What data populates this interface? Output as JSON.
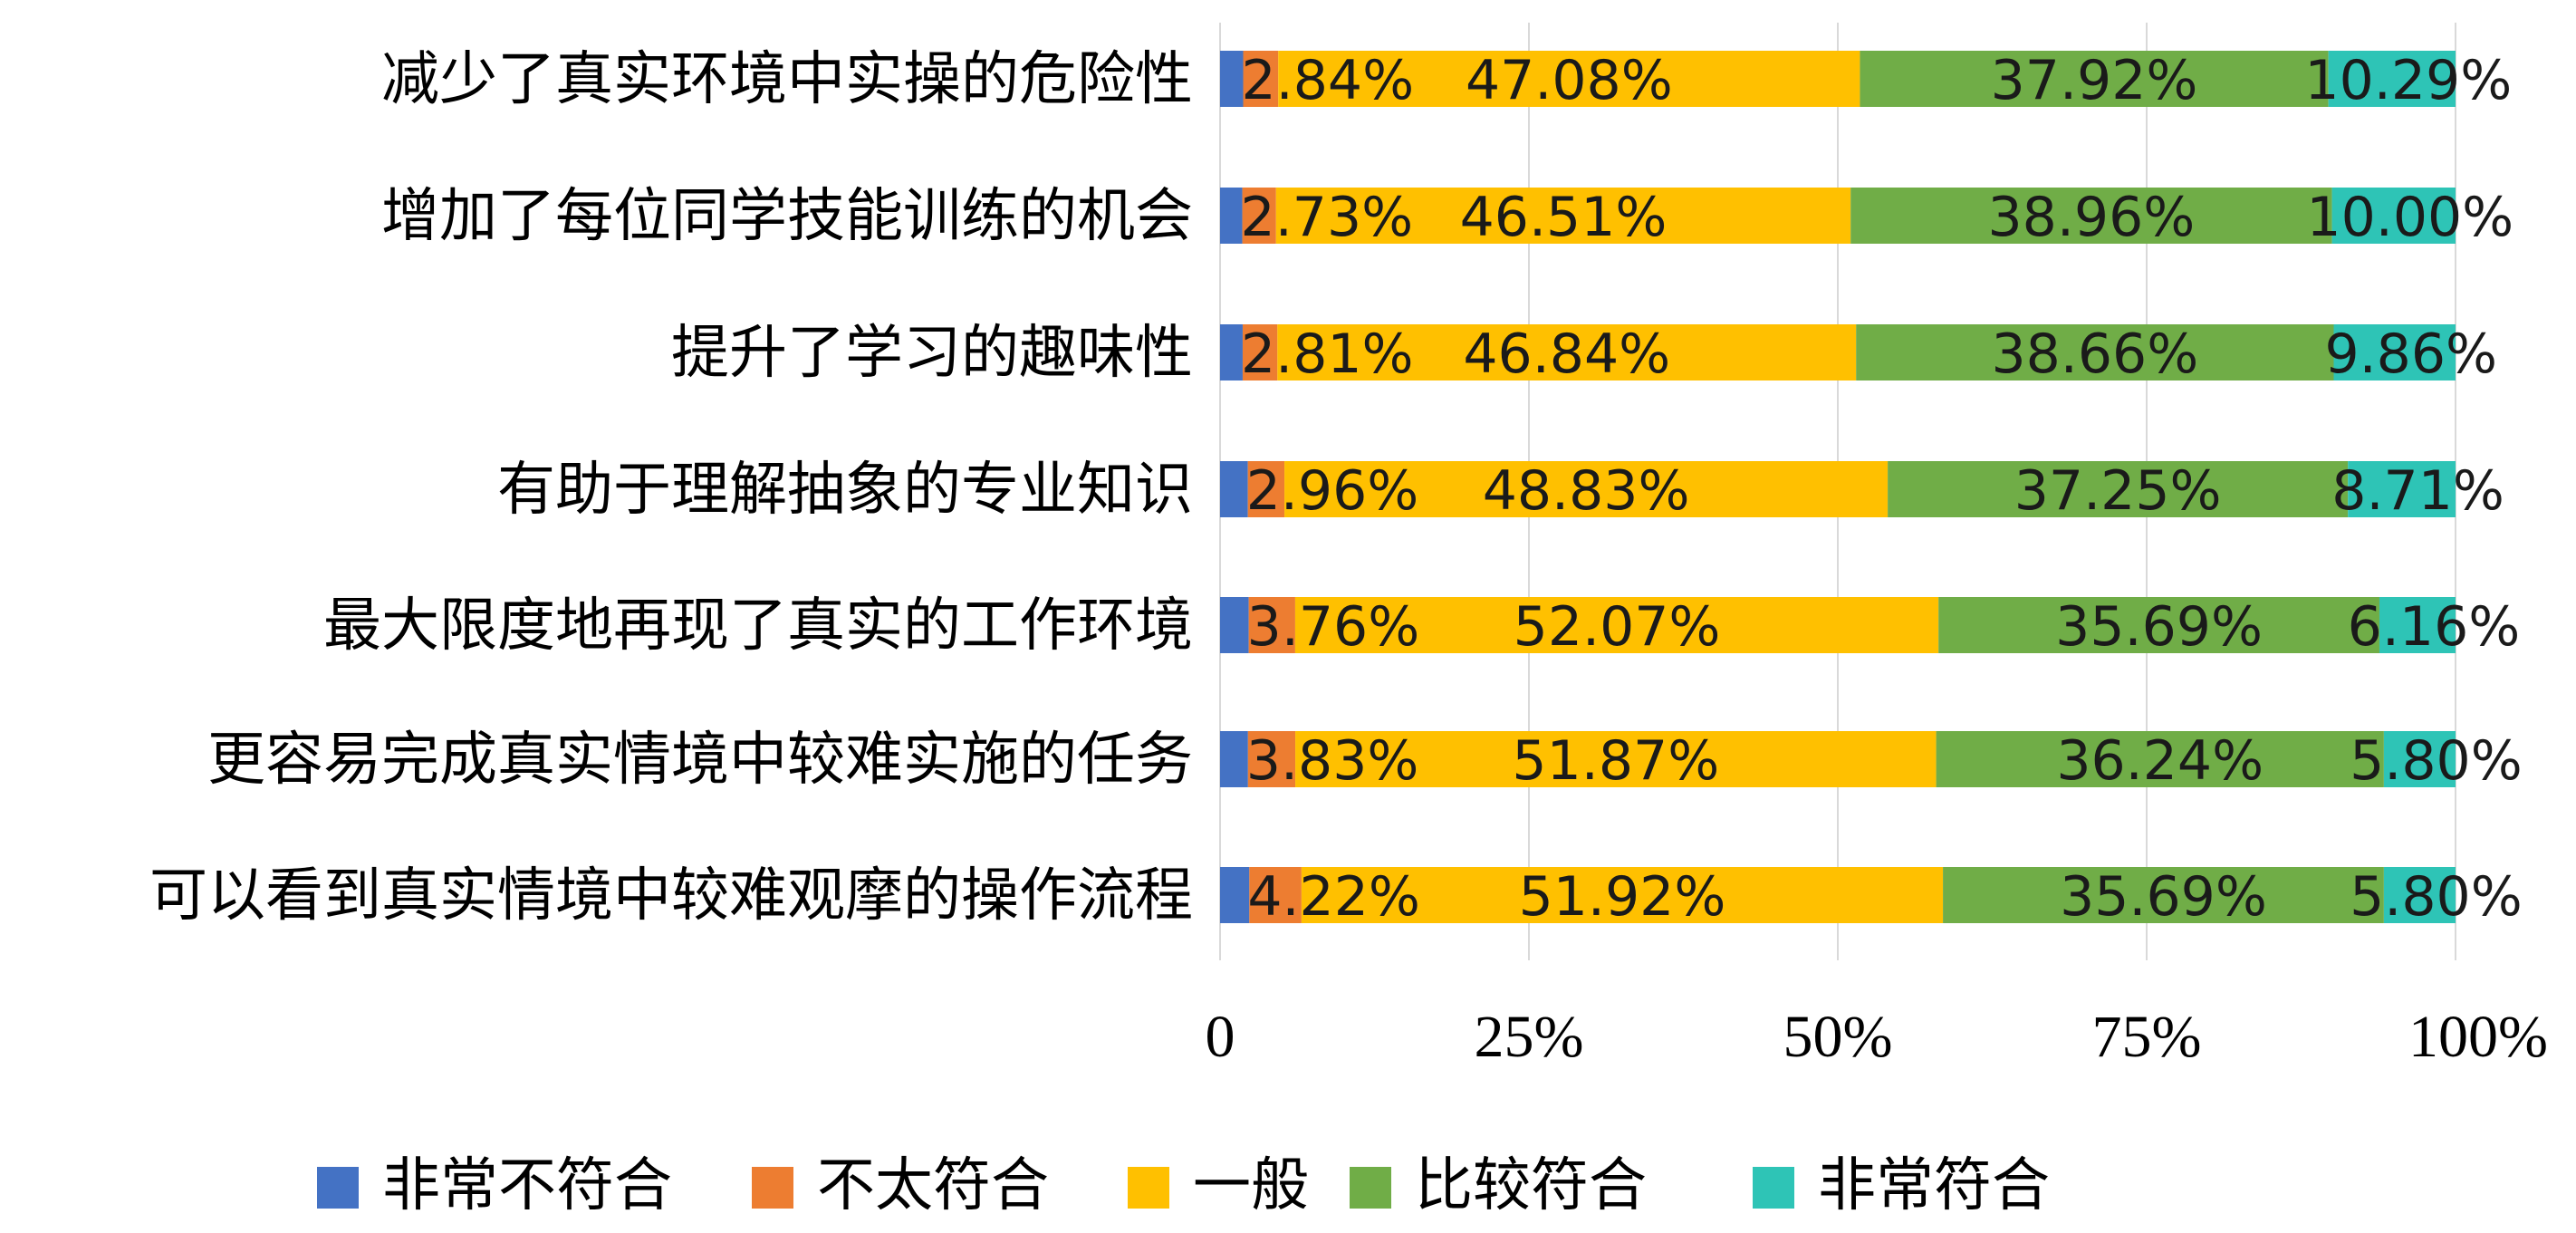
{
  "chart_data": {
    "type": "bar",
    "orientation": "horizontal",
    "stacked": "percent",
    "title": "",
    "xlabel": "",
    "ylabel": "",
    "xlim": [
      0,
      100
    ],
    "x_ticks": [
      "0",
      "25%",
      "50%",
      "75%",
      "100%"
    ],
    "grid": true,
    "legend_position": "bottom",
    "categories": [
      "减少了真实环境中实操的危险性",
      "增加了每位同学技能训练的机会",
      "提升了学习的趣味性",
      "有助于理解抽象的专业知识",
      "最大限度地再现了真实的工作环境",
      "更容易完成真实情境中较难实施的任务",
      "可以看到真实情境中较难观摩的操作流程"
    ],
    "series": [
      {
        "name": "非常不符合",
        "color": "#4472C4",
        "values": [
          1.87,
          1.8,
          1.83,
          2.25,
          2.32,
          2.26,
          2.37
        ],
        "labels": [
          "",
          "",
          "",
          "",
          "",
          "",
          ""
        ]
      },
      {
        "name": "不太符合",
        "color": "#ED7D31",
        "values": [
          2.84,
          2.73,
          2.81,
          2.96,
          3.76,
          3.83,
          4.22
        ],
        "labels": [
          "2.84%",
          "2.73%",
          "2.81%",
          "2.96%",
          "3.76%",
          "3.83%",
          "4.22%"
        ]
      },
      {
        "name": "一般",
        "color": "#FFC000",
        "values": [
          47.08,
          46.51,
          46.84,
          48.83,
          52.07,
          51.87,
          51.92
        ],
        "labels": [
          "47.08%",
          "46.51%",
          "46.84%",
          "48.83%",
          "52.07%",
          "51.87%",
          "51.92%"
        ]
      },
      {
        "name": "比较符合",
        "color": "#70AD47",
        "values": [
          37.92,
          38.96,
          38.66,
          37.25,
          35.69,
          36.24,
          35.69
        ],
        "labels": [
          "37.92%",
          "38.96%",
          "38.66%",
          "37.25%",
          "35.69%",
          "36.24%",
          "35.69%"
        ]
      },
      {
        "name": "非常符合",
        "color": "#2EC4B6",
        "values": [
          10.29,
          10.0,
          9.86,
          8.71,
          6.16,
          5.8,
          5.8
        ],
        "labels": [
          "10.29%",
          "10.00%",
          "9.86%",
          "8.71%",
          "6.16%",
          "5.80%",
          "5.80%"
        ]
      }
    ]
  }
}
